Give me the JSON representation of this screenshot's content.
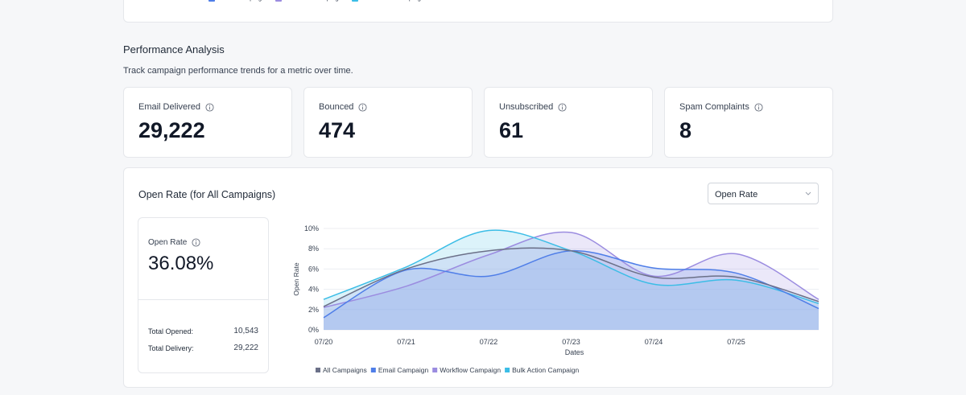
{
  "top_legend": [
    {
      "name": "Email Campaign",
      "color": "#4f7ee8"
    },
    {
      "name": "Workflow Campaign",
      "color": "#9b8ce0"
    },
    {
      "name": "Bulk Action Campaign",
      "color": "#3bbde6"
    }
  ],
  "section": {
    "title": "Performance Analysis",
    "subtitle": "Track campaign performance trends for a metric over time."
  },
  "metrics": [
    {
      "label": "Email Delivered",
      "value": "29,222"
    },
    {
      "label": "Bounced",
      "value": "474"
    },
    {
      "label": "Unsubscribed",
      "value": "61"
    },
    {
      "label": "Spam Complaints",
      "value": "8"
    }
  ],
  "panel": {
    "title": "Open Rate (for All Campaigns)",
    "dropdown": "Open Rate",
    "summary": {
      "label": "Open Rate",
      "value": "36.08%",
      "rows": [
        {
          "label": "Total Opened:",
          "value": "10,543"
        },
        {
          "label": "Total Delivery:",
          "value": "29,222"
        }
      ]
    }
  },
  "chart_data": {
    "type": "line",
    "xlabel": "Dates",
    "ylabel": "Open Rate",
    "categories": [
      "07/20",
      "07/21",
      "07/22",
      "07/23",
      "07/24",
      "07/25",
      null
    ],
    "ylim": [
      0,
      10
    ],
    "yticks": [
      {
        "value": 0,
        "label": "0%"
      },
      {
        "value": 2,
        "label": "2%"
      },
      {
        "value": 4,
        "label": "4%"
      },
      {
        "value": 6,
        "label": "6%"
      },
      {
        "value": 8,
        "label": "8%"
      },
      {
        "value": 10,
        "label": "10%"
      }
    ],
    "grid": true,
    "series": [
      {
        "name": "All Campaigns",
        "color": "#6b7088",
        "values": [
          2.3,
          6.0,
          7.8,
          7.8,
          5.2,
          5.2,
          2.8
        ]
      },
      {
        "name": "Email Campaign",
        "color": "#4f7ee8",
        "values": [
          1.2,
          5.9,
          5.3,
          7.8,
          6.1,
          5.6,
          2.1
        ]
      },
      {
        "name": "Workflow Campaign",
        "color": "#9b8ce0",
        "values": [
          2.2,
          4.3,
          7.4,
          9.6,
          5.3,
          7.5,
          3.0
        ]
      },
      {
        "name": "Bulk Action Campaign",
        "color": "#3bbde6",
        "values": [
          3.0,
          6.2,
          9.8,
          7.8,
          4.5,
          4.9,
          2.6
        ]
      }
    ]
  }
}
